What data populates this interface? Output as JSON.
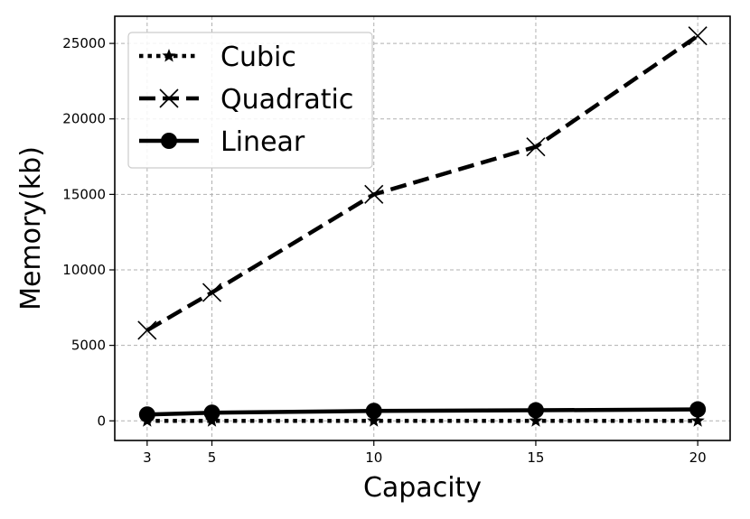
{
  "chart_data": {
    "type": "line",
    "title": "",
    "xlabel": "Capacity",
    "ylabel": "Memory(kb)",
    "x": [
      3,
      5,
      10,
      15,
      20
    ],
    "xticks": [
      "3",
      "5",
      "10",
      "15",
      "20"
    ],
    "yticks": [
      "0",
      "5000",
      "10000",
      "15000",
      "20000",
      "25000"
    ],
    "xlim": [
      2,
      21
    ],
    "ylim": [
      -1300,
      26800
    ],
    "grid": true,
    "legend_position": "top-left",
    "series": [
      {
        "name": "Cubic",
        "values": [
          0,
          0,
          0,
          0,
          0
        ],
        "line_style": "dotted",
        "marker": "star",
        "color": "#000000"
      },
      {
        "name": "Quadratic",
        "values": [
          6000,
          8500,
          15000,
          18150,
          25500
        ],
        "line_style": "dashed",
        "marker": "x",
        "color": "#000000"
      },
      {
        "name": "Linear",
        "values": [
          420,
          540,
          660,
          700,
          760
        ],
        "line_style": "solid",
        "marker": "circle",
        "color": "#000000"
      }
    ]
  }
}
